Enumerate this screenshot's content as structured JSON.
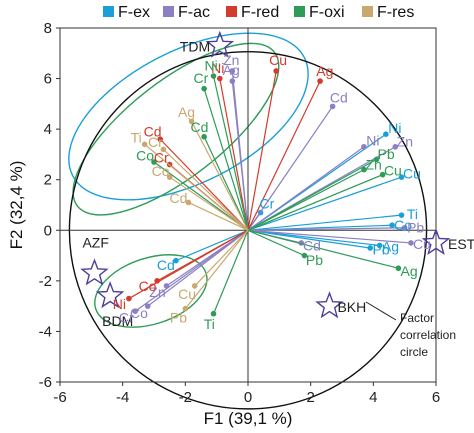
{
  "chart_data": {
    "type": "scatter",
    "xlabel": "F1 (39,1 %)",
    "ylabel": "F2 (32,4 %)",
    "xlim": [
      -6,
      6
    ],
    "ylim": [
      -6,
      8
    ],
    "x_ticks": [
      "-6",
      "-4",
      "-2",
      "0",
      "2",
      "4",
      "6"
    ],
    "y_ticks": [
      "-6",
      "-4",
      "-2",
      "0",
      "2",
      "4",
      "6",
      "8"
    ],
    "grid": false,
    "legend_position": "top",
    "legend": [
      {
        "name": "F-ex",
        "color": "#1a9fd8"
      },
      {
        "name": "F-ac",
        "color": "#8c7fc3"
      },
      {
        "name": "F-red",
        "color": "#d33b2c"
      },
      {
        "name": "F-oxi",
        "color": "#2e9c57"
      },
      {
        "name": "F-res",
        "color": "#c9a870"
      }
    ],
    "series": [
      {
        "name": "F-ex",
        "color": "#1a9fd8",
        "points": [
          {
            "label": "Ni",
            "x": 4.4,
            "y": 3.8
          },
          {
            "label": "Cu",
            "x": 4.9,
            "y": 2.1
          },
          {
            "label": "Co",
            "x": 4.6,
            "y": 0.2
          },
          {
            "label": "Ti",
            "x": 4.9,
            "y": 0.6
          },
          {
            "label": "Ag",
            "x": 4.2,
            "y": -0.6
          },
          {
            "label": "Pb",
            "x": 3.9,
            "y": -0.7
          },
          {
            "label": "Cd",
            "x": -2.3,
            "y": -1.2
          },
          {
            "label": "Cr",
            "x": 0.4,
            "y": 0.7
          }
        ]
      },
      {
        "name": "F-ac",
        "color": "#8c7fc3",
        "points": [
          {
            "label": "Zn",
            "x": -0.5,
            "y": 6.3
          },
          {
            "label": "Ag",
            "x": -0.5,
            "y": 5.9
          },
          {
            "label": "Cd",
            "x": 2.7,
            "y": 4.9
          },
          {
            "label": "Ni",
            "x": 3.7,
            "y": 3.3
          },
          {
            "label": "Zn",
            "x": 4.7,
            "y": 3.3
          },
          {
            "label": "Pb",
            "x": 5.0,
            "y": 0.1
          },
          {
            "label": "Cu",
            "x": 5.2,
            "y": -0.5
          },
          {
            "label": "Cd",
            "x": 1.7,
            "y": -0.5
          },
          {
            "label": "Co",
            "x": -3.2,
            "y": -3.0
          },
          {
            "label": "Cr",
            "x": -3.6,
            "y": -3.2
          },
          {
            "label": "Zn",
            "x": -2.6,
            "y": -2.2
          }
        ]
      },
      {
        "name": "F-red",
        "color": "#d33b2c",
        "points": [
          {
            "label": "Cu",
            "x": 0.9,
            "y": 6.3
          },
          {
            "label": "Ag",
            "x": 2.3,
            "y": 5.9
          },
          {
            "label": "Ni",
            "x": -0.9,
            "y": 6.0
          },
          {
            "label": "Cd",
            "x": -2.8,
            "y": 3.6
          },
          {
            "label": "Cr",
            "x": -2.5,
            "y": 2.6
          },
          {
            "label": "Co",
            "x": -2.9,
            "y": -2.0
          },
          {
            "label": "Ni",
            "x": -3.8,
            "y": -2.7
          }
        ]
      },
      {
        "name": "F-oxi",
        "color": "#2e9c57",
        "points": [
          {
            "label": "Cr",
            "x": -1.4,
            "y": 5.6
          },
          {
            "label": "Ni",
            "x": -1.1,
            "y": 6.1
          },
          {
            "label": "Cd",
            "x": -1.4,
            "y": 3.7
          },
          {
            "label": "Co",
            "x": -3.0,
            "y": 2.7
          },
          {
            "label": "Zn",
            "x": 3.7,
            "y": 2.4
          },
          {
            "label": "Cu",
            "x": 4.3,
            "y": 2.2
          },
          {
            "label": "Pb",
            "x": 4.1,
            "y": 2.8
          },
          {
            "label": "Ti",
            "x": -1.1,
            "y": -3.3
          },
          {
            "label": "Ag",
            "x": 4.8,
            "y": -1.5
          },
          {
            "label": "Pb",
            "x": 1.8,
            "y": -1.0
          }
        ]
      },
      {
        "name": "F-res",
        "color": "#c9a870",
        "points": [
          {
            "label": "Ti",
            "x": -3.3,
            "y": 3.4
          },
          {
            "label": "Cr",
            "x": -2.7,
            "y": 3.2
          },
          {
            "label": "Ag",
            "x": -1.8,
            "y": 4.3
          },
          {
            "label": "Co",
            "x": -2.5,
            "y": 2.1
          },
          {
            "label": "Cd",
            "x": -1.9,
            "y": 1.1
          },
          {
            "label": "Cu",
            "x": -1.7,
            "y": -2.2
          },
          {
            "label": "Pb",
            "x": -2.0,
            "y": -3.1
          }
        ]
      }
    ],
    "sites": [
      {
        "label": "TDM",
        "x": -0.9,
        "y": 7.3
      },
      {
        "label": "EST",
        "x": 6.0,
        "y": -0.5
      },
      {
        "label": "BKH",
        "x": 2.6,
        "y": -3.0
      },
      {
        "label": "AZF",
        "x": -4.9,
        "y": -1.7
      },
      {
        "label": "BDM",
        "x": -4.4,
        "y": -2.6
      }
    ],
    "annotation": "Factor correlation circle",
    "correlation_circle": {
      "center": [
        0,
        0
      ],
      "radius": 5.7
    }
  }
}
